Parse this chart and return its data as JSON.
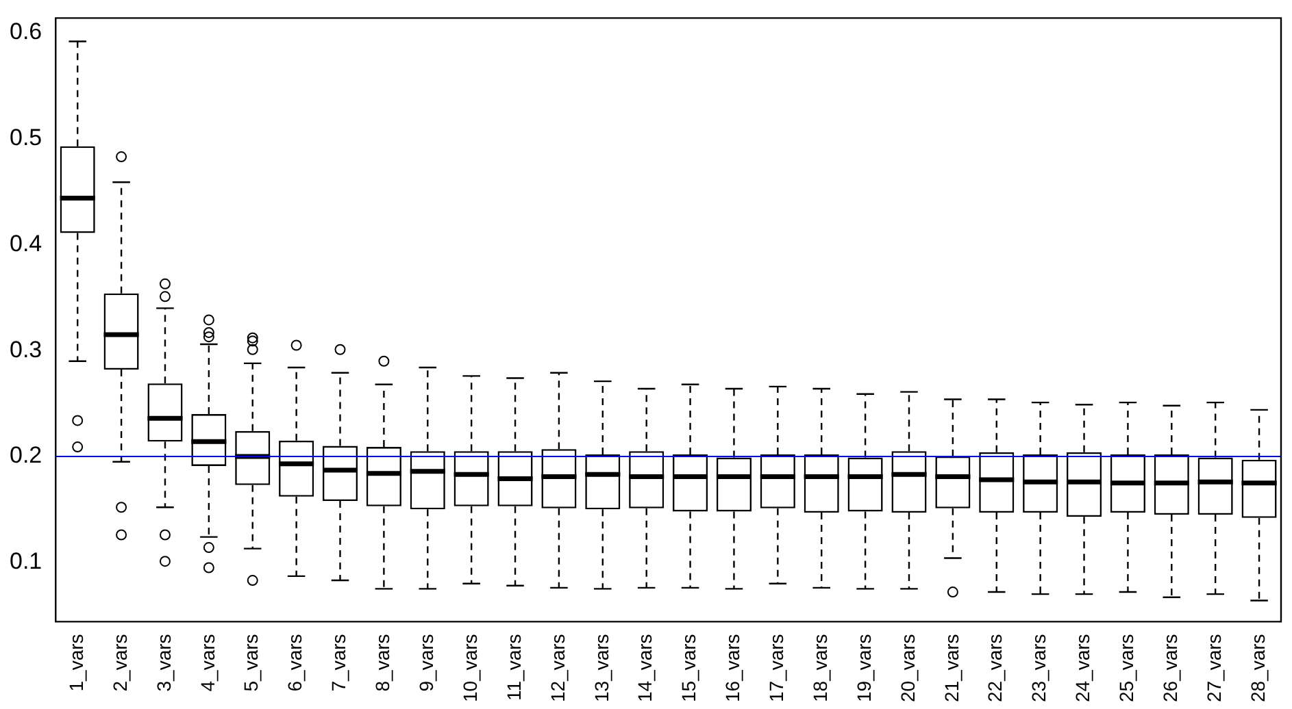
{
  "chart_data": {
    "type": "box",
    "categories": [
      "1_vars",
      "2_vars",
      "3_vars",
      "4_vars",
      "5_vars",
      "6_vars",
      "7_vars",
      "8_vars",
      "9_vars",
      "10_vars",
      "11_vars",
      "12_vars",
      "13_vars",
      "14_vars",
      "15_vars",
      "16_vars",
      "17_vars",
      "18_vars",
      "19_vars",
      "20_vars",
      "21_vars",
      "22_vars",
      "23_vars",
      "24_vars",
      "25_vars",
      "26_vars",
      "27_vars",
      "28_vars"
    ],
    "boxes": [
      {
        "low": 0.29,
        "q1": 0.411,
        "median": 0.444,
        "q3": 0.493,
        "high": 0.592,
        "outliers": [
          0.234,
          0.209
        ]
      },
      {
        "low": 0.195,
        "q1": 0.282,
        "median": 0.315,
        "q3": 0.354,
        "high": 0.459,
        "outliers": [
          0.483,
          0.152,
          0.126
        ]
      },
      {
        "low": 0.152,
        "q1": 0.214,
        "median": 0.236,
        "q3": 0.269,
        "high": 0.34,
        "outliers": [
          0.363,
          0.351,
          0.126,
          0.101
        ]
      },
      {
        "low": 0.124,
        "q1": 0.191,
        "median": 0.214,
        "q3": 0.24,
        "high": 0.306,
        "outliers": [
          0.329,
          0.317,
          0.313,
          0.114,
          0.095
        ]
      },
      {
        "low": 0.113,
        "q1": 0.173,
        "median": 0.2,
        "q3": 0.224,
        "high": 0.288,
        "outliers": [
          0.312,
          0.309,
          0.301,
          0.083
        ]
      },
      {
        "low": 0.087,
        "q1": 0.162,
        "median": 0.193,
        "q3": 0.215,
        "high": 0.284,
        "outliers": [
          0.305
        ]
      },
      {
        "low": 0.083,
        "q1": 0.158,
        "median": 0.187,
        "q3": 0.21,
        "high": 0.279,
        "outliers": [
          0.301
        ]
      },
      {
        "low": 0.075,
        "q1": 0.153,
        "median": 0.184,
        "q3": 0.209,
        "high": 0.268,
        "outliers": [
          0.29
        ]
      },
      {
        "low": 0.075,
        "q1": 0.15,
        "median": 0.186,
        "q3": 0.205,
        "high": 0.284
      },
      {
        "low": 0.08,
        "q1": 0.153,
        "median": 0.183,
        "q3": 0.205,
        "high": 0.276
      },
      {
        "low": 0.078,
        "q1": 0.153,
        "median": 0.179,
        "q3": 0.205,
        "high": 0.274
      },
      {
        "low": 0.076,
        "q1": 0.151,
        "median": 0.181,
        "q3": 0.207,
        "high": 0.279
      },
      {
        "low": 0.075,
        "q1": 0.15,
        "median": 0.183,
        "q3": 0.202,
        "high": 0.271
      },
      {
        "low": 0.076,
        "q1": 0.151,
        "median": 0.181,
        "q3": 0.205,
        "high": 0.264
      },
      {
        "low": 0.076,
        "q1": 0.148,
        "median": 0.181,
        "q3": 0.202,
        "high": 0.268
      },
      {
        "low": 0.075,
        "q1": 0.148,
        "median": 0.181,
        "q3": 0.199,
        "high": 0.264
      },
      {
        "low": 0.08,
        "q1": 0.151,
        "median": 0.181,
        "q3": 0.202,
        "high": 0.266
      },
      {
        "low": 0.076,
        "q1": 0.147,
        "median": 0.181,
        "q3": 0.202,
        "high": 0.264
      },
      {
        "low": 0.075,
        "q1": 0.148,
        "median": 0.181,
        "q3": 0.199,
        "high": 0.259
      },
      {
        "low": 0.075,
        "q1": 0.147,
        "median": 0.183,
        "q3": 0.205,
        "high": 0.261
      },
      {
        "low": 0.104,
        "q1": 0.151,
        "median": 0.181,
        "q3": 0.2,
        "high": 0.254,
        "outliers": [
          0.072
        ]
      },
      {
        "low": 0.072,
        "q1": 0.147,
        "median": 0.178,
        "q3": 0.204,
        "high": 0.254
      },
      {
        "low": 0.07,
        "q1": 0.147,
        "median": 0.176,
        "q3": 0.202,
        "high": 0.251
      },
      {
        "low": 0.07,
        "q1": 0.143,
        "median": 0.176,
        "q3": 0.204,
        "high": 0.249
      },
      {
        "low": 0.072,
        "q1": 0.147,
        "median": 0.175,
        "q3": 0.202,
        "high": 0.251
      },
      {
        "low": 0.067,
        "q1": 0.145,
        "median": 0.175,
        "q3": 0.202,
        "high": 0.248
      },
      {
        "low": 0.07,
        "q1": 0.145,
        "median": 0.176,
        "q3": 0.199,
        "high": 0.251
      },
      {
        "low": 0.064,
        "q1": 0.142,
        "median": 0.175,
        "q3": 0.197,
        "high": 0.244
      }
    ],
    "color": "#000000",
    "ylim": [
      0.044,
      0.614
    ],
    "yticks": [
      0.1,
      0.2,
      0.3,
      0.4,
      0.5,
      0.6
    ],
    "ref_lines": [
      {
        "axis": "y",
        "value": 0.2,
        "color": "#0000ff"
      }
    ],
    "grid": false,
    "legend": false
  }
}
